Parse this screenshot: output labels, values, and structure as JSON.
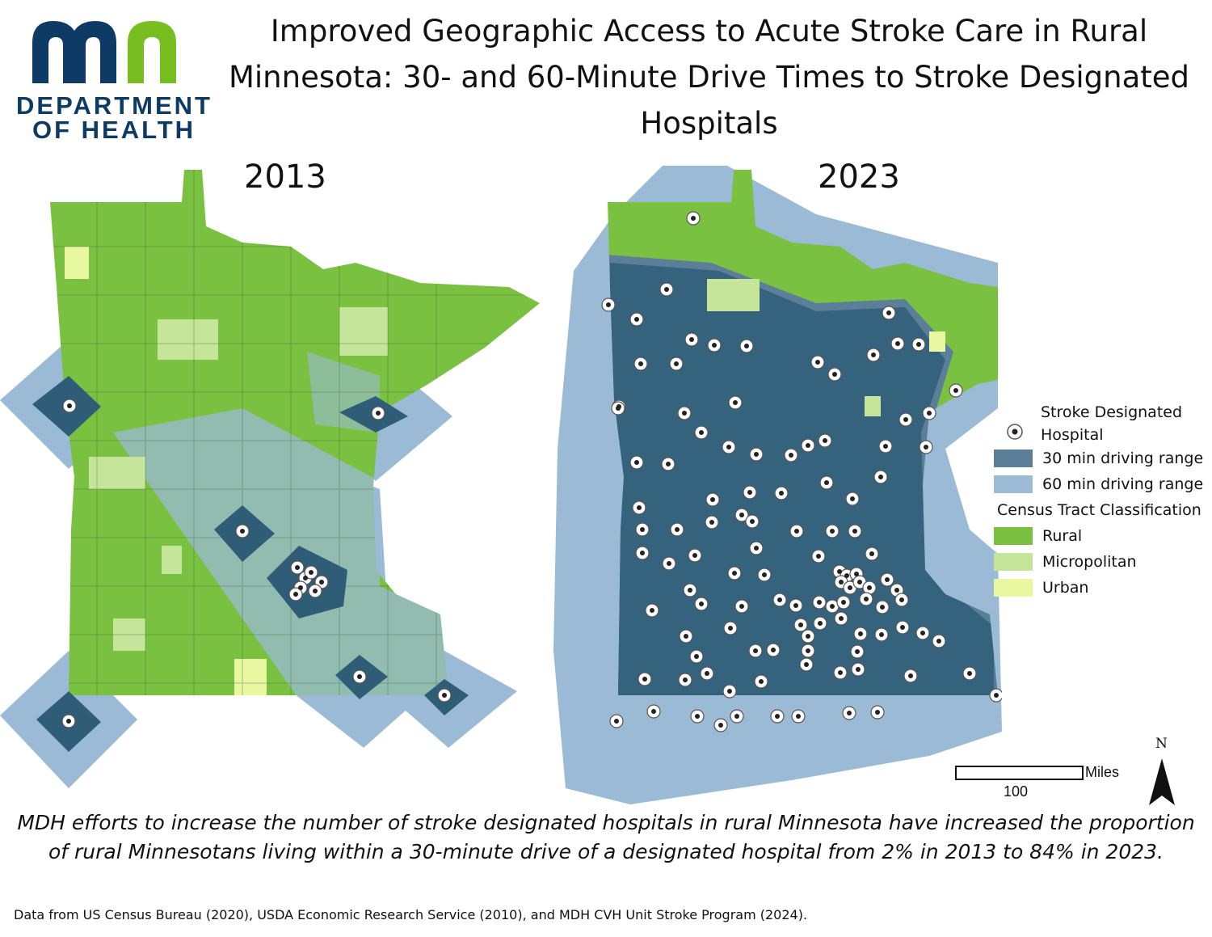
{
  "logo": {
    "line1": "DEPARTMENT",
    "line2": "OF HEALTH",
    "colors": {
      "navy": "#0d3b66",
      "green": "#78be20"
    }
  },
  "title": "Improved Geographic Access to Acute Stroke Care in Rural Minnesota: 30- and 60-Minute Drive Times to Stroke Designated Hospitals",
  "maps": [
    {
      "year": "2013",
      "hospitals_shown": 13
    },
    {
      "year": "2023",
      "hospitals_shown": 120
    }
  ],
  "legend": {
    "hospital": "Stroke Designated Hospital",
    "range30": "30 min driving range",
    "range60": "60 min driving range",
    "classification_title": "Census Tract Classification",
    "rural": "Rural",
    "micropolitan": "Micropolitan",
    "urban": "Urban",
    "colors": {
      "range30": "#5b7f99",
      "range60": "#9bbad6",
      "rural": "#7ac142",
      "micropolitan": "#c4e59a",
      "urban": "#e8f7a0",
      "region30": "#2f5d78"
    }
  },
  "scale": {
    "unit": "Miles",
    "value": "100"
  },
  "north": "N",
  "caption": "MDH efforts to increase the number of stroke designated hospitals in rural Minnesota have increased the proportion of rural Minnesotans living within a 30-minute drive of a designated hospital from 2% in 2013 to 84% in 2023.",
  "source": "Data from US Census Bureau (2020), USDA Economic Research Service (2010), and MDH CVH Unit Stroke Program (2024)."
}
